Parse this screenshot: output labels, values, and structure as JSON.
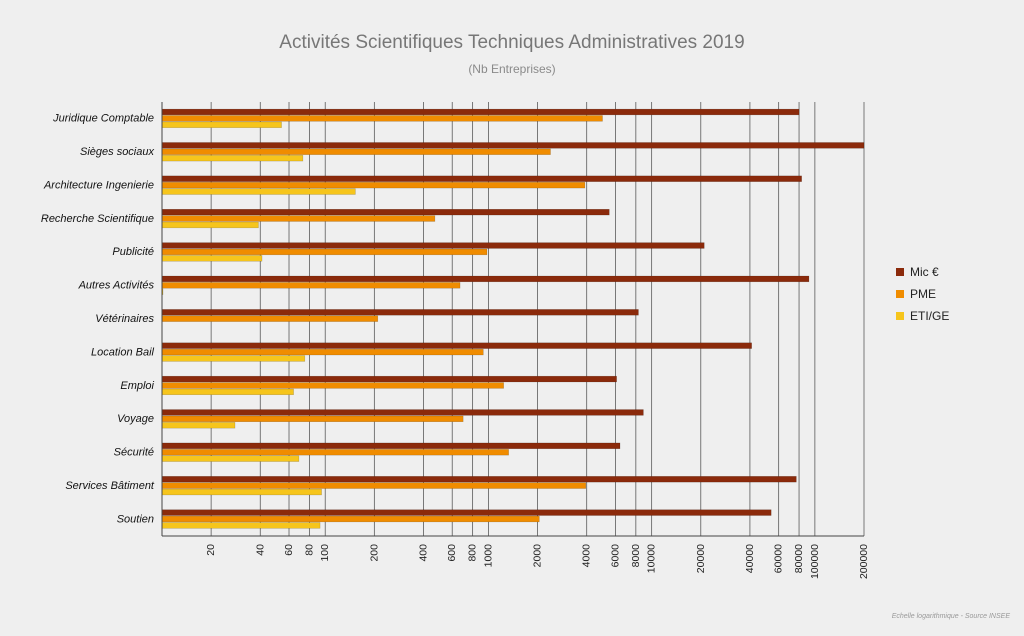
{
  "chart_data": {
    "type": "bar",
    "orientation": "horizontal",
    "title": "Activités Scientifiques Techniques Administratives 2019",
    "subtitle": "(Nb Entreprises)",
    "footnote": "Echelle logarithmique - Source INSEE",
    "x_scale": "log",
    "xlim": [
      10,
      200000
    ],
    "x_ticks": [
      20,
      40,
      60,
      80,
      100,
      200,
      400,
      600,
      800,
      1000,
      2000,
      4000,
      6000,
      8000,
      10000,
      20000,
      40000,
      60000,
      80000,
      100000,
      200000
    ],
    "categories": [
      "Juridique Comptable",
      "Sièges sociaux",
      "Architecture Ingenierie",
      "Recherche Scientifique",
      "Publicité",
      "Autres Activités",
      "Vétérinaires",
      "Location Bail",
      "Emploi",
      "Voyage",
      "Sécurité",
      "Services Bâtiment",
      "Soutien"
    ],
    "series": [
      {
        "name": "Mic €",
        "color": "#8b2a0b",
        "values": [
          80000,
          200000,
          83000,
          5500,
          21000,
          92000,
          8300,
          41000,
          6100,
          8900,
          6400,
          77000,
          54000
        ]
      },
      {
        "name": "PME",
        "color": "#f08c00",
        "values": [
          5000,
          2400,
          3900,
          470,
          980,
          670,
          210,
          930,
          1240,
          700,
          1330,
          3950,
          2050
        ]
      },
      {
        "name": "ETI/GE",
        "color": "#f6c51c",
        "values": [
          54,
          73,
          153,
          39,
          41,
          10,
          null,
          75,
          64,
          28,
          69,
          95,
          93
        ]
      }
    ],
    "legend_position": "right",
    "grid": true
  }
}
